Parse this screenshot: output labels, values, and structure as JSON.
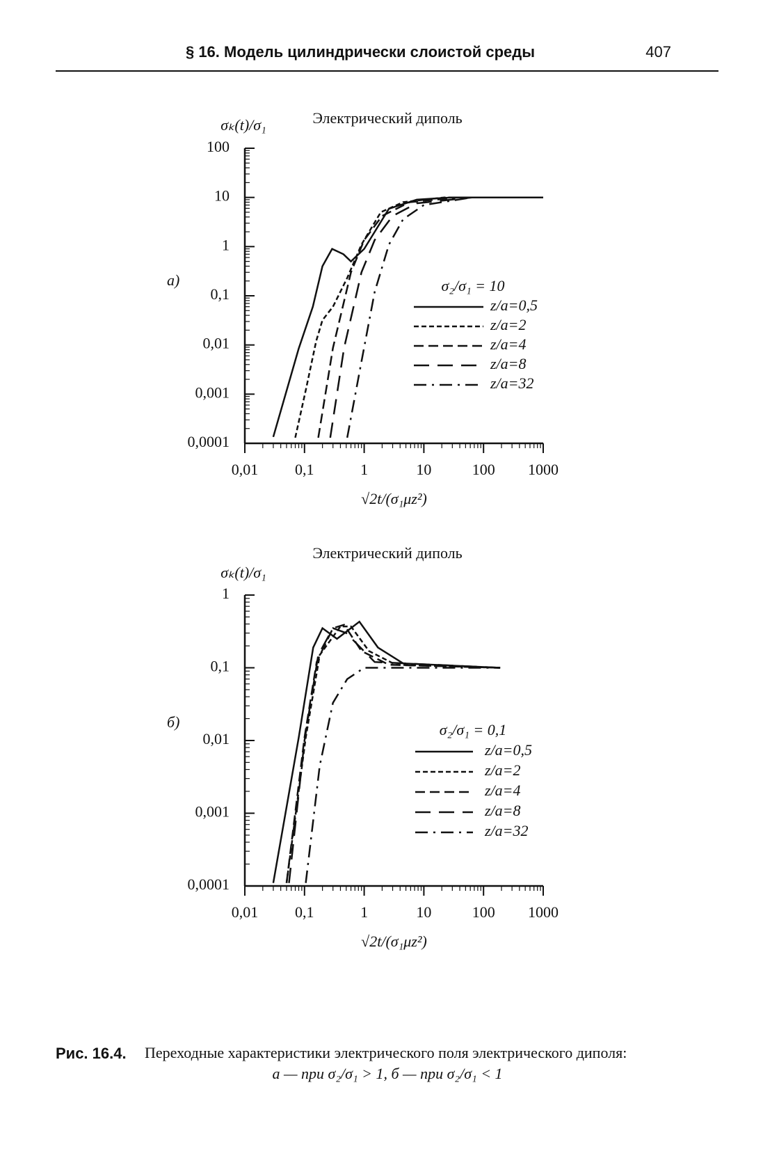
{
  "header": {
    "title": "§ 16. Модель цилиндрически слоистой среды",
    "page": "407"
  },
  "chart_data": [
    {
      "type": "line",
      "panel": "а)",
      "title": "Электрический диполь",
      "ylabel": "σₖ(t)/σ₁",
      "xlabel": "√2t/(σ₁μz²)",
      "log_x": true,
      "log_y": true,
      "xlim": [
        0.01,
        1000
      ],
      "ylim": [
        0.0001,
        100
      ],
      "xticks": [
        {
          "value": 0.01,
          "label": "0,01"
        },
        {
          "value": 0.1,
          "label": "0,1"
        },
        1,
        10,
        100,
        1000
      ],
      "yticks": [
        {
          "value": 0.0001,
          "label": "0,0001"
        },
        {
          "value": 0.001,
          "label": "0,001"
        },
        {
          "value": 0.01,
          "label": "0,01"
        },
        {
          "value": 0.1,
          "label": "0,1"
        },
        1,
        10,
        100
      ],
      "legend_title": "σ₂/σ₁ = 10",
      "series": [
        {
          "name": "z/a=0,5",
          "color": "#111",
          "dash": "none",
          "x": [
            0.03,
            0.08,
            0.138,
            0.2,
            0.29,
            0.45,
            0.6,
            1,
            2.6,
            7.6,
            29,
            1000
          ],
          "values": [
            0.000135,
            0.0085,
            0.06,
            0.4,
            0.9,
            0.7,
            0.5,
            0.9,
            5.9,
            9,
            10,
            10
          ]
        },
        {
          "name": "z/a=2",
          "color": "#111",
          "dash": "7,4",
          "x": [
            0.07,
            0.105,
            0.157,
            0.2,
            0.3,
            0.52,
            0.9,
            1.9,
            4.5,
            22,
            1000
          ],
          "values": [
            0.00013,
            0.0012,
            0.012,
            0.032,
            0.06,
            0.23,
            1.1,
            5,
            8,
            10,
            10
          ]
        },
        {
          "name": "z/a=4",
          "color": "#111",
          "dash": "14,7",
          "x": [
            0.17,
            0.3,
            0.6,
            1,
            2,
            5.8,
            38,
            1000
          ],
          "values": [
            0.00013,
            0.0087,
            0.3,
            1.36,
            4.2,
            8,
            10,
            10
          ]
        },
        {
          "name": "z/a=8",
          "color": "#111",
          "dash": "22,12",
          "x": [
            0.27,
            0.46,
            0.9,
            1.5,
            3,
            7.6,
            64,
            1000
          ],
          "values": [
            0.00013,
            0.0087,
            0.3,
            1.36,
            4.2,
            7.6,
            10,
            10
          ]
        },
        {
          "name": "z/a=32",
          "color": "#111",
          "dash": "18,8,3,8",
          "x": [
            0.52,
            0.9,
            1.5,
            2.6,
            4.5,
            10,
            64,
            1000
          ],
          "values": [
            0.00013,
            0.0046,
            0.12,
            1.1,
            3.6,
            7,
            10,
            10
          ]
        }
      ]
    },
    {
      "type": "line",
      "panel": "б)",
      "title": "Электрический диполь",
      "ylabel": "σₖ(t)/σ₁",
      "xlabel": "√2t/(σ₁μz²)",
      "log_x": true,
      "log_y": true,
      "xlim": [
        0.01,
        1000
      ],
      "ylim": [
        0.0001,
        1
      ],
      "xticks": [
        {
          "value": 0.01,
          "label": "0,01"
        },
        {
          "value": 0.1,
          "label": "0,1"
        },
        1,
        10,
        100,
        1000
      ],
      "yticks": [
        {
          "value": 0.0001,
          "label": "0,0001"
        },
        {
          "value": 0.001,
          "label": "0,001"
        },
        {
          "value": 0.01,
          "label": "0,01"
        },
        {
          "value": 0.1,
          "label": "0,1"
        },
        1
      ],
      "legend_title": "σ₂/σ₁ = 0,1",
      "series": [
        {
          "name": "z/a=0,5",
          "color": "#111",
          "dash": "none",
          "x": [
            0.03,
            0.08,
            0.14,
            0.2,
            0.35,
            0.83,
            1.7,
            4.5,
            190
          ],
          "values": [
            0.00011,
            0.011,
            0.19,
            0.35,
            0.25,
            0.43,
            0.19,
            0.115,
            0.1
          ]
        },
        {
          "name": "z/a=2",
          "color": "#111",
          "dash": "7,4",
          "x": [
            0.05,
            0.105,
            0.18,
            0.4,
            0.6,
            1.2,
            3.4,
            190
          ],
          "values": [
            0.00011,
            0.011,
            0.15,
            0.37,
            0.37,
            0.17,
            0.11,
            0.1
          ]
        },
        {
          "name": "z/a=4",
          "color": "#111",
          "dash": "14,7",
          "x": [
            0.05,
            0.1,
            0.16,
            0.3,
            0.46,
            0.9,
            2.6,
            190
          ],
          "values": [
            0.00011,
            0.011,
            0.12,
            0.35,
            0.39,
            0.17,
            0.11,
            0.1
          ]
        },
        {
          "name": "z/a=8",
          "color": "#111",
          "dash": "22,12",
          "x": [
            0.055,
            0.1,
            0.17,
            0.3,
            0.5,
            1.5,
            190
          ],
          "values": [
            0.00011,
            0.01,
            0.15,
            0.35,
            0.3,
            0.12,
            0.1
          ]
        },
        {
          "name": "z/a=32",
          "color": "#111",
          "dash": "18,8,3,8",
          "x": [
            0.105,
            0.18,
            0.3,
            0.52,
            1,
            190
          ],
          "values": [
            0.00011,
            0.0045,
            0.033,
            0.07,
            0.1,
            0.1
          ]
        }
      ]
    }
  ],
  "caption": {
    "label": "Рис. 16.4.",
    "line1": "Переходные характеристики электрического поля электрического диполя:",
    "line2": "а — при σ₂/σ₁ > 1, б — при σ₂/σ₁ < 1"
  }
}
